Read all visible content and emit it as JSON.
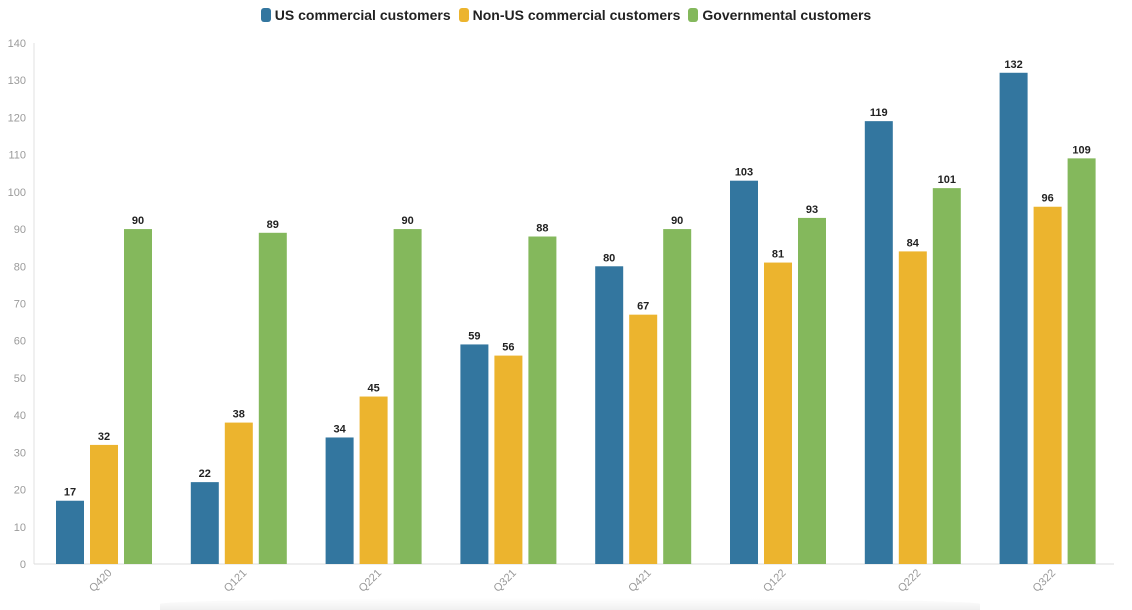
{
  "chart_data": {
    "type": "bar",
    "categories": [
      "Q420",
      "Q121",
      "Q221",
      "Q321",
      "Q421",
      "Q122",
      "Q222",
      "Q322"
    ],
    "series": [
      {
        "name": "US commercial customers",
        "color": "#33769f",
        "values": [
          17,
          22,
          34,
          59,
          80,
          103,
          119,
          132
        ]
      },
      {
        "name": "Non-US commercial customers",
        "color": "#ecb42e",
        "values": [
          32,
          38,
          45,
          56,
          67,
          81,
          84,
          96
        ]
      },
      {
        "name": "Governmental customers",
        "color": "#84b85c",
        "values": [
          90,
          89,
          90,
          88,
          90,
          93,
          101,
          109
        ]
      }
    ],
    "title": "",
    "xlabel": "",
    "ylabel": "",
    "ylim": [
      0,
      140
    ],
    "yticks": [
      0,
      10,
      20,
      30,
      40,
      50,
      60,
      70,
      80,
      90,
      100,
      110,
      120,
      130,
      140
    ],
    "legend_position": "top-center",
    "grid": false
  }
}
